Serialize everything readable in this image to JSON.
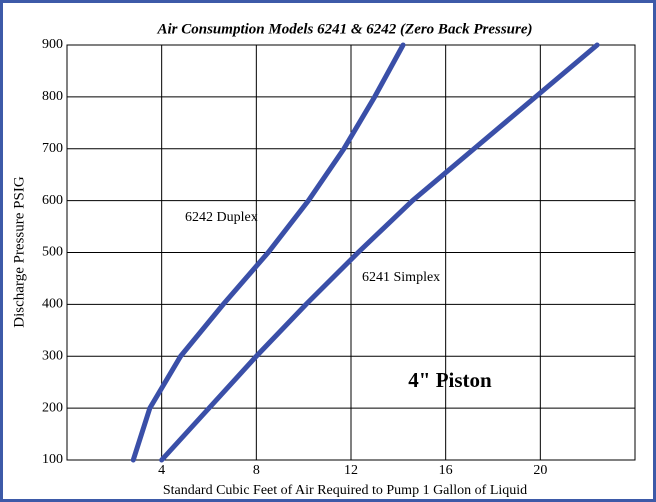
{
  "chart_data": {
    "type": "line",
    "title": "Air Consumption Models 6241 & 6242 (Zero Back Pressure)",
    "x_label": "Standard Cubic Feet of Air Required to Pump 1 Gallon of Liquid",
    "y_label": "Discharge Pressure PSIG",
    "annotation": "4\" Piston",
    "series": [
      {
        "name": "6242 Duplex",
        "color": "#3a4fa8",
        "x": [
          2.8,
          3.5,
          4.8,
          6.6,
          8.5,
          10.2,
          11.7,
          13.0,
          14.2
        ],
        "values": [
          100,
          200,
          300,
          400,
          500,
          600,
          700,
          800,
          900
        ]
      },
      {
        "name": "6241 Simplex",
        "color": "#3a4fa8",
        "x": [
          4.0,
          6.0,
          8.0,
          10.1,
          12.3,
          14.6,
          17.2,
          19.8,
          22.4
        ],
        "values": [
          100,
          200,
          300,
          400,
          500,
          600,
          700,
          800,
          900
        ]
      }
    ],
    "xlim": [
      0,
      24
    ],
    "xticks": [
      4,
      8,
      12,
      16,
      20
    ],
    "ylim": [
      100,
      900
    ],
    "yticks": [
      100,
      200,
      300,
      400,
      500,
      600,
      700,
      800,
      900
    ],
    "grid": true
  }
}
